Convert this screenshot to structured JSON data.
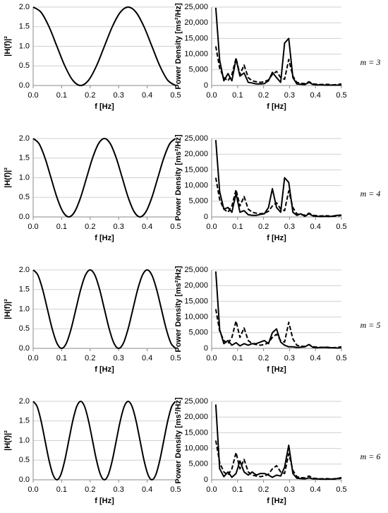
{
  "chart_data": [
    {
      "type": "line",
      "smooth": true,
      "grid": true,
      "color": "#000000",
      "xlabel": "f [Hz]",
      "ylabel": "|H(f)|²",
      "x": [
        0,
        0.0278,
        0.0556,
        0.0833,
        0.1111,
        0.1389,
        0.1667,
        0.1944,
        0.2222,
        0.25,
        0.2778,
        0.3056,
        0.3333,
        0.3611,
        0.3889,
        0.4167,
        0.4444,
        0.4722,
        0.5
      ],
      "values": [
        2,
        1.866,
        1.5,
        1,
        0.5,
        0.134,
        0,
        0.134,
        0.5,
        1,
        1.5,
        1.866,
        2,
        1.866,
        1.5,
        1,
        0.5,
        0.134,
        0
      ],
      "xlim": [
        0,
        0.5
      ],
      "xticks": [
        {
          "value": 0,
          "label": "0.0"
        },
        0.1,
        0.2,
        0.3,
        0.4,
        0.5
      ],
      "ylim": [
        0,
        2
      ],
      "yticks": [
        {
          "value": 0,
          "label": "0.0"
        },
        0.5,
        {
          "value": 1,
          "label": "1.0"
        },
        1.5,
        {
          "value": 2,
          "label": "2.0"
        }
      ]
    },
    {
      "type": "line",
      "grid": true,
      "xlabel": "f [Hz]",
      "ylabel": "Power Density [ms²/Hz]",
      "annotation": "m = 3",
      "x": [
        0.016,
        0.031,
        0.047,
        0.063,
        0.078,
        0.094,
        0.109,
        0.125,
        0.141,
        0.156,
        0.172,
        0.188,
        0.203,
        0.219,
        0.234,
        0.25,
        0.266,
        0.281,
        0.297,
        0.313,
        0.328,
        0.344,
        0.359,
        0.375,
        0.391,
        0.406,
        0.422,
        0.438,
        0.453,
        0.469,
        0.484,
        0.5
      ],
      "series": [
        {
          "color": "#000000",
          "dashed": false,
          "values": [
            24800,
            8000,
            1500,
            3800,
            1500,
            8500,
            3000,
            4000,
            1000,
            800,
            500,
            500,
            600,
            1500,
            4200,
            2500,
            1000,
            13500,
            15000,
            2500,
            500,
            400,
            300,
            1000,
            300,
            200,
            200,
            100,
            100,
            100,
            100,
            100
          ]
        },
        {
          "color": "#000000",
          "dashed": true,
          "values": [
            12500,
            5500,
            2500,
            1500,
            3500,
            8700,
            3500,
            6500,
            2500,
            1500,
            1200,
            1000,
            1200,
            1800,
            3500,
            4500,
            2500,
            2000,
            8300,
            3000,
            1000,
            700,
            600,
            1200,
            500,
            400,
            300,
            400,
            300,
            200,
            300,
            500
          ]
        }
      ],
      "xlim": [
        0,
        0.5
      ],
      "xticks": [
        {
          "value": 0,
          "label": "0.0"
        },
        0.1,
        0.2,
        0.3,
        0.4,
        0.5
      ],
      "ylim": [
        0,
        25000
      ],
      "yticks": [
        0,
        {
          "value": 5000,
          "label": "5,000"
        },
        {
          "value": 10000,
          "label": "10,000"
        },
        {
          "value": 15000,
          "label": "15,000"
        },
        {
          "value": 20000,
          "label": "20,000"
        },
        {
          "value": 25000,
          "label": "25,000"
        }
      ]
    },
    {
      "type": "line",
      "smooth": true,
      "grid": true,
      "color": "#000000",
      "xlabel": "f [Hz]",
      "ylabel": "|H(f)|²",
      "x": [
        0,
        0.0208,
        0.0417,
        0.0625,
        0.0833,
        0.1042,
        0.125,
        0.1458,
        0.1667,
        0.1875,
        0.2083,
        0.2292,
        0.25,
        0.2708,
        0.2917,
        0.3125,
        0.3333,
        0.3542,
        0.375,
        0.3958,
        0.4167,
        0.4375,
        0.4583,
        0.4792,
        0.5
      ],
      "values": [
        2,
        1.866,
        1.5,
        1,
        0.5,
        0.134,
        0,
        0.134,
        0.5,
        1,
        1.5,
        1.866,
        2,
        1.866,
        1.5,
        1,
        0.5,
        0.134,
        0,
        0.134,
        0.5,
        1,
        1.5,
        1.866,
        2
      ],
      "xlim": [
        0,
        0.5
      ],
      "xticks": [
        {
          "value": 0,
          "label": "0.0"
        },
        0.1,
        0.2,
        0.3,
        0.4,
        0.5
      ],
      "ylim": [
        0,
        2
      ],
      "yticks": [
        {
          "value": 0,
          "label": "0.0"
        },
        0.5,
        {
          "value": 1,
          "label": "1.0"
        },
        1.5,
        {
          "value": 2,
          "label": "2.0"
        }
      ]
    },
    {
      "type": "line",
      "grid": true,
      "xlabel": "f [Hz]",
      "ylabel": "Power Density [ms²/Hz]",
      "annotation": "m = 4",
      "x": [
        0.016,
        0.031,
        0.047,
        0.063,
        0.078,
        0.094,
        0.109,
        0.125,
        0.141,
        0.156,
        0.172,
        0.188,
        0.203,
        0.219,
        0.234,
        0.25,
        0.266,
        0.281,
        0.297,
        0.313,
        0.328,
        0.344,
        0.359,
        0.375,
        0.391,
        0.406,
        0.422,
        0.438,
        0.453,
        0.469,
        0.484,
        0.5
      ],
      "series": [
        {
          "color": "#000000",
          "dashed": false,
          "values": [
            24500,
            8000,
            2500,
            3000,
            1500,
            7500,
            1500,
            2000,
            700,
            500,
            500,
            800,
            1000,
            3000,
            9000,
            3000,
            1500,
            12500,
            11000,
            1500,
            500,
            1000,
            200,
            1000,
            300,
            200,
            100,
            200,
            100,
            300,
            500,
            600
          ]
        },
        {
          "color": "#000000",
          "dashed": true,
          "values": [
            12500,
            5500,
            2500,
            1500,
            3500,
            8700,
            3500,
            6500,
            2500,
            1500,
            1200,
            1000,
            1200,
            1800,
            3500,
            4500,
            2500,
            2000,
            8300,
            3000,
            1000,
            700,
            600,
            1200,
            500,
            400,
            300,
            400,
            300,
            200,
            300,
            500
          ]
        }
      ],
      "xlim": [
        0,
        0.5
      ],
      "xticks": [
        {
          "value": 0,
          "label": "0.0"
        },
        0.1,
        0.2,
        0.3,
        0.4,
        0.5
      ],
      "ylim": [
        0,
        25000
      ],
      "yticks": [
        0,
        {
          "value": 5000,
          "label": "5,000"
        },
        {
          "value": 10000,
          "label": "10,000"
        },
        {
          "value": 15000,
          "label": "15,000"
        },
        {
          "value": 20000,
          "label": "20,000"
        },
        {
          "value": 25000,
          "label": "25,000"
        }
      ]
    },
    {
      "type": "line",
      "smooth": true,
      "grid": true,
      "color": "#000000",
      "xlabel": "f [Hz]",
      "ylabel": "|H(f)|²",
      "x": [
        0,
        0.0167,
        0.0333,
        0.05,
        0.0667,
        0.0833,
        0.1,
        0.1167,
        0.1333,
        0.15,
        0.1667,
        0.1833,
        0.2,
        0.2167,
        0.2333,
        0.25,
        0.2667,
        0.2833,
        0.3,
        0.3167,
        0.3333,
        0.35,
        0.3667,
        0.3833,
        0.4,
        0.4167,
        0.4333,
        0.45,
        0.4667,
        0.4833,
        0.5
      ],
      "values": [
        2,
        1.866,
        1.5,
        1,
        0.5,
        0.134,
        0,
        0.134,
        0.5,
        1,
        1.5,
        1.866,
        2,
        1.866,
        1.5,
        1,
        0.5,
        0.134,
        0,
        0.134,
        0.5,
        1,
        1.5,
        1.866,
        2,
        1.866,
        1.5,
        1,
        0.5,
        0.134,
        0
      ],
      "xlim": [
        0,
        0.5
      ],
      "xticks": [
        {
          "value": 0,
          "label": "0.0"
        },
        0.1,
        0.2,
        0.3,
        0.4,
        0.5
      ],
      "ylim": [
        0,
        2
      ],
      "yticks": [
        {
          "value": 0,
          "label": "0.0"
        },
        0.5,
        {
          "value": 1,
          "label": "1.0"
        },
        1.5,
        {
          "value": 2,
          "label": "2.0"
        }
      ]
    },
    {
      "type": "line",
      "grid": true,
      "xlabel": "f [Hz]",
      "ylabel": "Power Density [ms²/Hz]",
      "annotation": "m = 5",
      "x": [
        0.016,
        0.031,
        0.047,
        0.063,
        0.078,
        0.094,
        0.109,
        0.125,
        0.141,
        0.156,
        0.172,
        0.188,
        0.203,
        0.219,
        0.234,
        0.25,
        0.266,
        0.281,
        0.297,
        0.313,
        0.328,
        0.344,
        0.359,
        0.375,
        0.391,
        0.406,
        0.422,
        0.438,
        0.453,
        0.469,
        0.484,
        0.5
      ],
      "series": [
        {
          "color": "#000000",
          "dashed": false,
          "values": [
            24500,
            6000,
            1500,
            2500,
            1000,
            1800,
            800,
            1500,
            1000,
            1500,
            1500,
            2000,
            2500,
            1500,
            5000,
            6200,
            2000,
            1000,
            500,
            500,
            300,
            400,
            500,
            1200,
            300,
            200,
            300,
            300,
            200,
            200,
            100,
            200
          ]
        },
        {
          "color": "#000000",
          "dashed": true,
          "values": [
            12500,
            5500,
            2500,
            1500,
            3500,
            8700,
            3500,
            6500,
            2500,
            1500,
            1200,
            1000,
            1200,
            1800,
            3500,
            4500,
            2500,
            2000,
            8300,
            3000,
            1000,
            700,
            600,
            1200,
            500,
            400,
            300,
            400,
            300,
            200,
            300,
            500
          ]
        }
      ],
      "xlim": [
        0,
        0.5
      ],
      "xticks": [
        {
          "value": 0,
          "label": "0.0"
        },
        0.1,
        0.2,
        0.3,
        0.4,
        0.5
      ],
      "ylim": [
        0,
        25000
      ],
      "yticks": [
        0,
        {
          "value": 5000,
          "label": "5,000"
        },
        {
          "value": 10000,
          "label": "10,000"
        },
        {
          "value": 15000,
          "label": "15,000"
        },
        {
          "value": 20000,
          "label": "20,000"
        },
        {
          "value": 25000,
          "label": "25,000"
        }
      ]
    },
    {
      "type": "line",
      "smooth": true,
      "grid": true,
      "color": "#000000",
      "xlabel": "f [Hz]",
      "ylabel": "|H(f)|²",
      "x": [
        0,
        0.0139,
        0.0278,
        0.0417,
        0.0556,
        0.0694,
        0.0833,
        0.0972,
        0.1111,
        0.125,
        0.1389,
        0.1528,
        0.1667,
        0.1806,
        0.1944,
        0.2083,
        0.2222,
        0.2361,
        0.25,
        0.2639,
        0.2778,
        0.2917,
        0.3056,
        0.3194,
        0.3333,
        0.3472,
        0.3611,
        0.375,
        0.3889,
        0.4028,
        0.4167,
        0.4306,
        0.4444,
        0.4583,
        0.4722,
        0.4861,
        0.5
      ],
      "values": [
        2,
        1.866,
        1.5,
        1,
        0.5,
        0.134,
        0,
        0.134,
        0.5,
        1,
        1.5,
        1.866,
        2,
        1.866,
        1.5,
        1,
        0.5,
        0.134,
        0,
        0.134,
        0.5,
        1,
        1.5,
        1.866,
        2,
        1.866,
        1.5,
        1,
        0.5,
        0.134,
        0,
        0.134,
        0.5,
        1,
        1.5,
        1.866,
        2
      ],
      "xlim": [
        0,
        0.5
      ],
      "xticks": [
        {
          "value": 0,
          "label": "0.0"
        },
        0.1,
        0.2,
        0.3,
        0.4,
        0.5
      ],
      "ylim": [
        0,
        2
      ],
      "yticks": [
        {
          "value": 0,
          "label": "0.0"
        },
        0.5,
        {
          "value": 1,
          "label": "1.0"
        },
        1.5,
        {
          "value": 2,
          "label": "2.0"
        }
      ]
    },
    {
      "type": "line",
      "grid": true,
      "xlabel": "f [Hz]",
      "ylabel": "Power Density [ms²/Hz]",
      "annotation": "m = 6",
      "x": [
        0.016,
        0.031,
        0.047,
        0.063,
        0.078,
        0.094,
        0.109,
        0.125,
        0.141,
        0.156,
        0.172,
        0.188,
        0.203,
        0.219,
        0.234,
        0.25,
        0.266,
        0.281,
        0.297,
        0.313,
        0.328,
        0.344,
        0.359,
        0.375,
        0.391,
        0.406,
        0.422,
        0.438,
        0.453,
        0.469,
        0.484,
        0.5
      ],
      "series": [
        {
          "color": "#000000",
          "dashed": false,
          "values": [
            24000,
            3500,
            1000,
            2500,
            800,
            2000,
            6000,
            2500,
            1500,
            2500,
            1500,
            2000,
            2000,
            1500,
            800,
            1500,
            1200,
            4000,
            11000,
            2000,
            500,
            400,
            300,
            600,
            300,
            300,
            200,
            200,
            200,
            300,
            400,
            700
          ]
        },
        {
          "color": "#000000",
          "dashed": true,
          "values": [
            12500,
            5500,
            2500,
            1500,
            3500,
            8700,
            3500,
            6500,
            2500,
            1500,
            1200,
            1000,
            1200,
            1800,
            3500,
            4500,
            2500,
            2000,
            8300,
            3000,
            1000,
            700,
            600,
            1200,
            500,
            400,
            300,
            400,
            300,
            200,
            300,
            500
          ]
        }
      ],
      "xlim": [
        0,
        0.5
      ],
      "xticks": [
        {
          "value": 0,
          "label": "0.0"
        },
        0.1,
        0.2,
        0.3,
        0.4,
        0.5
      ],
      "ylim": [
        0,
        25000
      ],
      "yticks": [
        0,
        {
          "value": 5000,
          "label": "5,000"
        },
        {
          "value": 10000,
          "label": "10,000"
        },
        {
          "value": 15000,
          "label": "15,000"
        },
        {
          "value": 20000,
          "label": "20,000"
        },
        {
          "value": 25000,
          "label": "25,000"
        }
      ]
    }
  ]
}
